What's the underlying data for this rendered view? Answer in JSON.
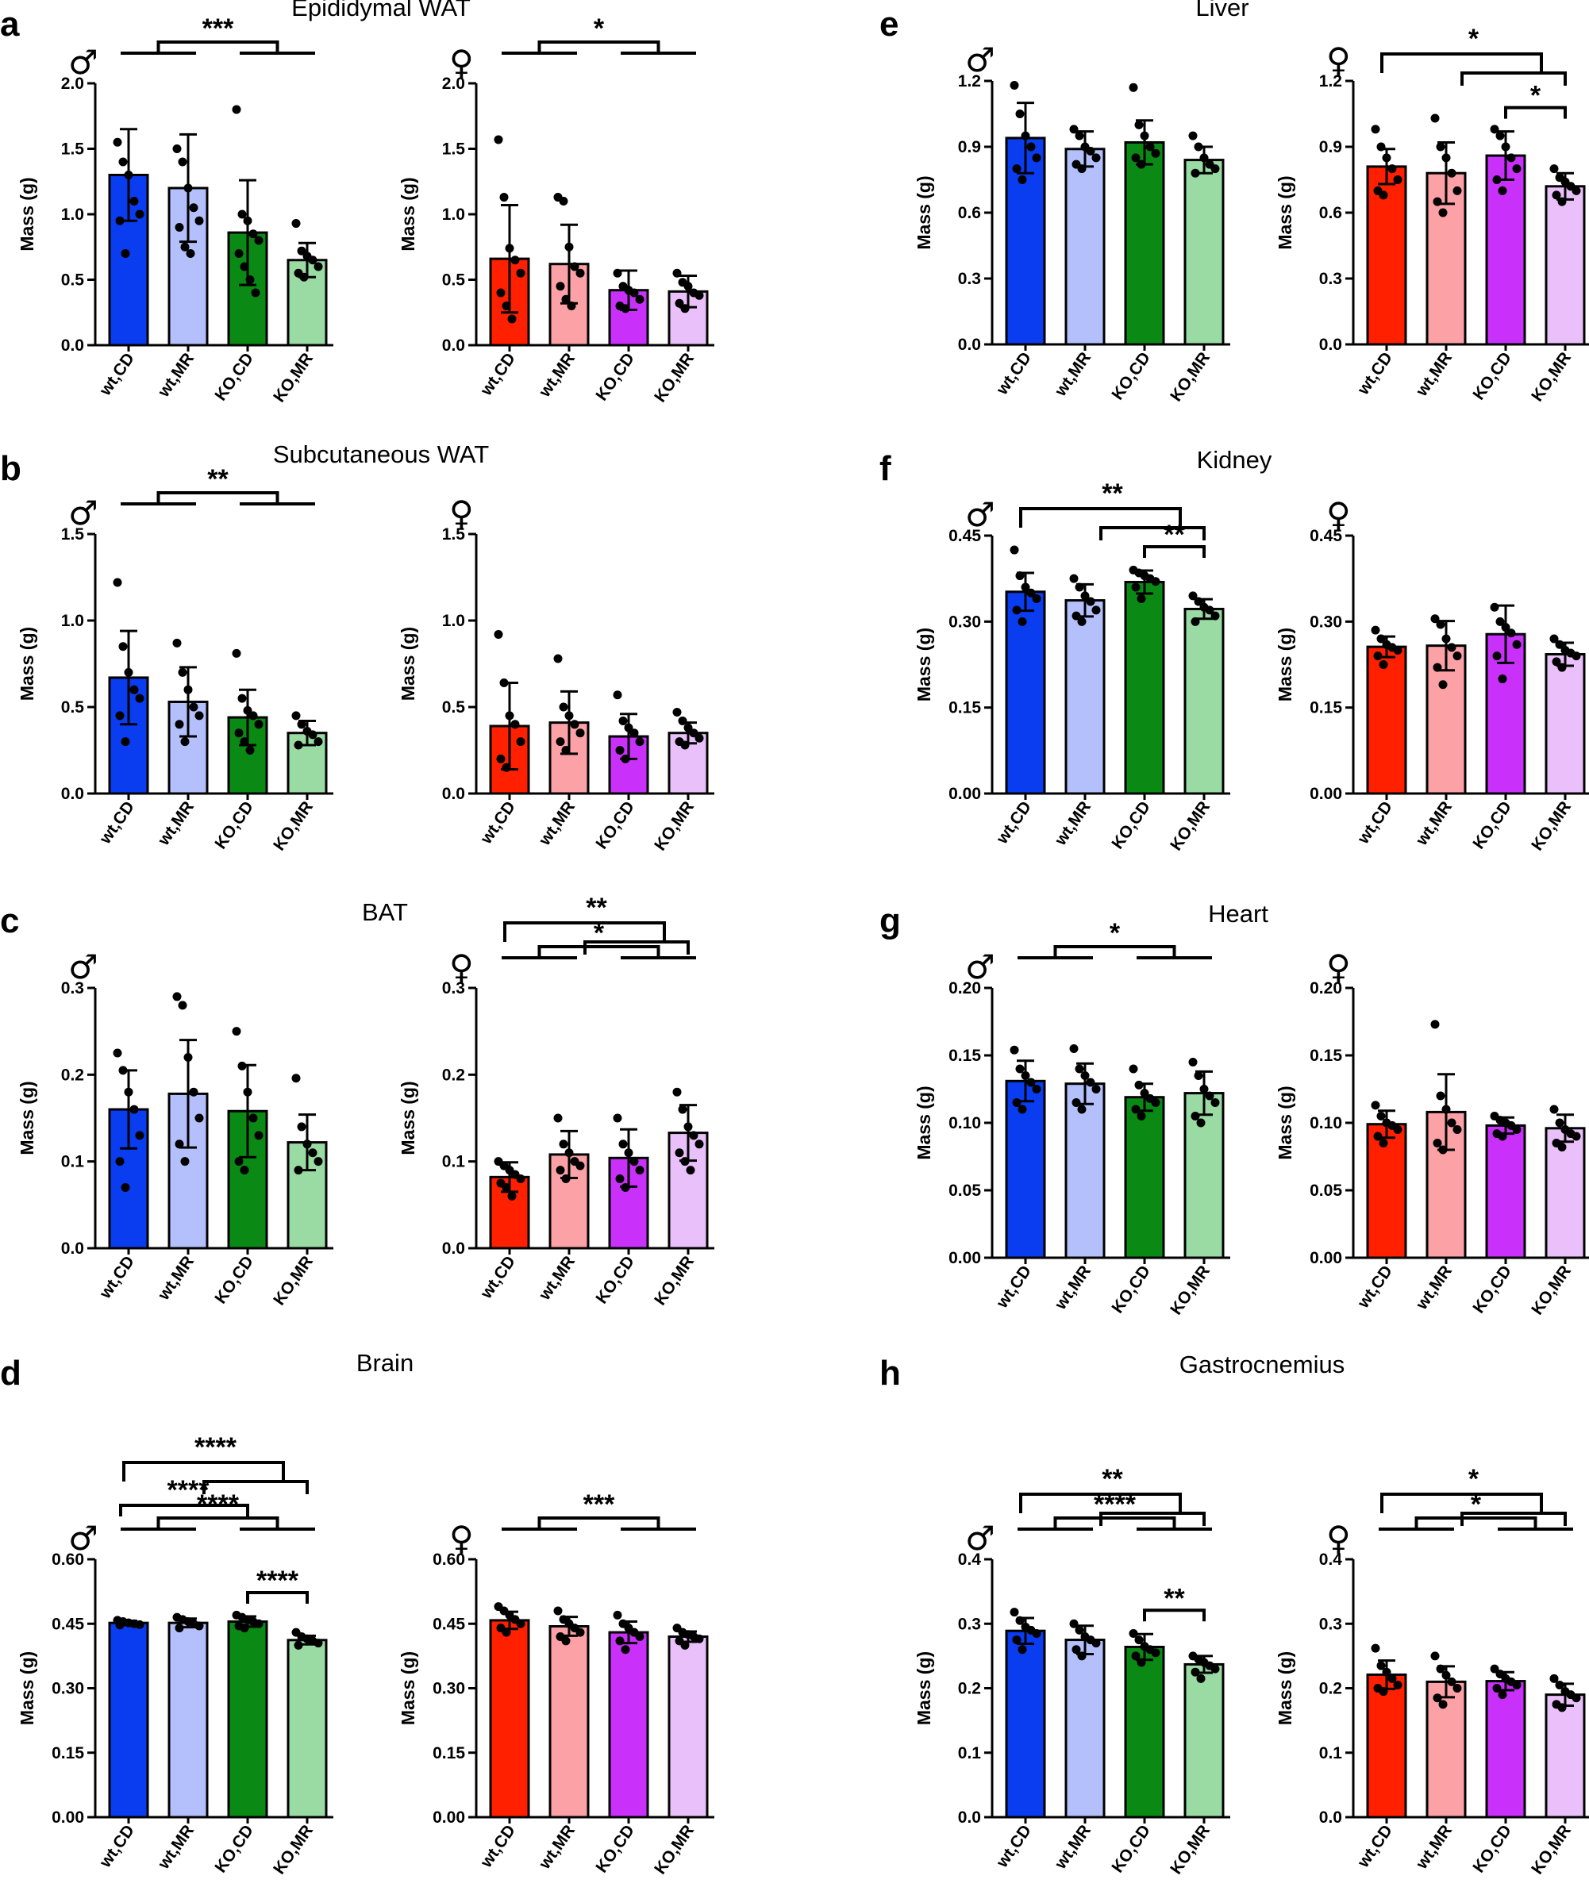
{
  "categories": [
    "wt,CD",
    "wt,MR",
    "KO,CD",
    "KO,MR"
  ],
  "y_axis_label": "Mass (g)",
  "symbols": {
    "male": "♂",
    "female": "♀"
  },
  "colors": {
    "male": [
      "#0a3cf0",
      "#b3c0fb",
      "#0a8a14",
      "#99dba3"
    ],
    "female": [
      "#ff2000",
      "#fca1a6",
      "#c931fb",
      "#eac0fb"
    ]
  },
  "panels": [
    {
      "letter": "a",
      "title": "Epididymal WAT"
    },
    {
      "letter": "b",
      "title": "Subcutaneous WAT"
    },
    {
      "letter": "c",
      "title": "BAT"
    },
    {
      "letter": "d",
      "title": "Brain"
    },
    {
      "letter": "e",
      "title": "Liver"
    },
    {
      "letter": "f",
      "title": "Kidney"
    },
    {
      "letter": "g",
      "title": "Heart"
    },
    {
      "letter": "h",
      "title": "Gastrocnemius"
    }
  ],
  "chart_data": [
    {
      "panel": "a",
      "sex": "male",
      "type": "bar",
      "ylim": [
        0,
        2.0
      ],
      "ticks": [
        "0.0",
        "0.5",
        "1.0",
        "1.5",
        "2.0"
      ],
      "values": [
        1.3,
        1.2,
        0.86,
        0.65
      ],
      "sd": [
        0.35,
        0.41,
        0.4,
        0.13
      ],
      "points": [
        [
          1.55,
          1.4,
          1.3,
          1.1,
          1.0,
          0.95,
          0.7
        ],
        [
          1.5,
          1.4,
          1.2,
          1.05,
          0.95,
          0.9,
          0.75,
          0.7
        ],
        [
          1.8,
          1.0,
          0.95,
          0.85,
          0.8,
          0.7,
          0.6,
          0.5,
          0.4
        ],
        [
          0.93,
          0.72,
          0.68,
          0.65,
          0.6,
          0.55,
          0.52
        ]
      ],
      "brackets": [
        {
          "type": "group",
          "a": [
            0,
            1
          ],
          "b": [
            2,
            3
          ],
          "label": "***"
        }
      ]
    },
    {
      "panel": "a",
      "sex": "female",
      "type": "bar",
      "ylim": [
        0,
        2.0
      ],
      "ticks": [
        "0.0",
        "0.5",
        "1.0",
        "1.5",
        "2.0"
      ],
      "values": [
        0.66,
        0.62,
        0.42,
        0.41
      ],
      "sd": [
        0.41,
        0.3,
        0.15,
        0.12
      ],
      "points": [
        [
          1.57,
          1.13,
          0.74,
          0.65,
          0.55,
          0.4,
          0.3,
          0.2
        ],
        [
          1.13,
          1.1,
          0.75,
          0.6,
          0.55,
          0.45,
          0.35,
          0.3
        ],
        [
          0.55,
          0.45,
          0.42,
          0.4,
          0.35,
          0.3,
          0.28
        ],
        [
          0.55,
          0.48,
          0.45,
          0.4,
          0.38,
          0.32,
          0.28
        ]
      ],
      "brackets": [
        {
          "type": "group",
          "a": [
            0,
            1
          ],
          "b": [
            2,
            3
          ],
          "label": "*"
        }
      ]
    },
    {
      "panel": "b",
      "sex": "male",
      "type": "bar",
      "ylim": [
        0,
        1.5
      ],
      "ticks": [
        "0.0",
        "0.5",
        "1.0",
        "1.5"
      ],
      "values": [
        0.67,
        0.53,
        0.44,
        0.35
      ],
      "sd": [
        0.27,
        0.2,
        0.16,
        0.07
      ],
      "points": [
        [
          1.22,
          0.85,
          0.7,
          0.6,
          0.55,
          0.45,
          0.3
        ],
        [
          0.87,
          0.7,
          0.6,
          0.5,
          0.45,
          0.4,
          0.3
        ],
        [
          0.81,
          0.55,
          0.48,
          0.45,
          0.4,
          0.35,
          0.3,
          0.25
        ],
        [
          0.45,
          0.4,
          0.36,
          0.34,
          0.3,
          0.28
        ]
      ],
      "brackets": [
        {
          "type": "group",
          "a": [
            0,
            1
          ],
          "b": [
            2,
            3
          ],
          "label": "**"
        }
      ]
    },
    {
      "panel": "b",
      "sex": "female",
      "type": "bar",
      "ylim": [
        0,
        1.5
      ],
      "ticks": [
        "0.0",
        "0.5",
        "1.0",
        "1.5"
      ],
      "values": [
        0.39,
        0.41,
        0.33,
        0.35
      ],
      "sd": [
        0.25,
        0.18,
        0.13,
        0.06
      ],
      "points": [
        [
          0.92,
          0.64,
          0.45,
          0.4,
          0.3,
          0.2,
          0.15
        ],
        [
          0.78,
          0.5,
          0.45,
          0.4,
          0.35,
          0.3,
          0.25
        ],
        [
          0.57,
          0.42,
          0.38,
          0.35,
          0.3,
          0.25,
          0.2
        ],
        [
          0.47,
          0.42,
          0.38,
          0.35,
          0.32,
          0.3,
          0.28
        ]
      ],
      "brackets": []
    },
    {
      "panel": "c",
      "sex": "male",
      "type": "bar",
      "ylim": [
        0,
        0.3
      ],
      "ticks": [
        "0.0",
        "0.1",
        "0.2",
        "0.3"
      ],
      "values": [
        0.16,
        0.178,
        0.158,
        0.122
      ],
      "sd": [
        0.045,
        0.062,
        0.053,
        0.032
      ],
      "points": [
        [
          0.225,
          0.205,
          0.18,
          0.16,
          0.13,
          0.1,
          0.07
        ],
        [
          0.29,
          0.28,
          0.22,
          0.18,
          0.15,
          0.12,
          0.1
        ],
        [
          0.25,
          0.21,
          0.18,
          0.15,
          0.13,
          0.1,
          0.09
        ],
        [
          0.196,
          0.14,
          0.12,
          0.11,
          0.1,
          0.09
        ]
      ],
      "brackets": []
    },
    {
      "panel": "c",
      "sex": "female",
      "type": "bar",
      "ylim": [
        0,
        0.3
      ],
      "ticks": [
        "0.0",
        "0.1",
        "0.2",
        "0.3"
      ],
      "values": [
        0.082,
        0.108,
        0.104,
        0.133
      ],
      "sd": [
        0.017,
        0.027,
        0.033,
        0.032
      ],
      "points": [
        [
          0.1,
          0.095,
          0.09,
          0.085,
          0.08,
          0.075,
          0.07,
          0.06
        ],
        [
          0.15,
          0.12,
          0.11,
          0.1,
          0.095,
          0.09,
          0.08
        ],
        [
          0.15,
          0.12,
          0.11,
          0.1,
          0.09,
          0.08,
          0.07
        ],
        [
          0.18,
          0.16,
          0.14,
          0.13,
          0.12,
          0.11,
          0.1,
          0.09
        ]
      ],
      "brackets": [
        {
          "type": "nested",
          "a": [
            0,
            1
          ],
          "b": [
            2,
            3
          ],
          "label": "**"
        },
        {
          "type": "group",
          "a": [
            0,
            1
          ],
          "b": [
            2,
            3
          ],
          "label": "*"
        }
      ]
    },
    {
      "panel": "d",
      "sex": "male",
      "type": "bar",
      "ylim": [
        0,
        0.6
      ],
      "ticks": [
        "0.00",
        "0.15",
        "0.30",
        "0.45",
        "0.60"
      ],
      "values": [
        0.452,
        0.452,
        0.455,
        0.412
      ],
      "sd": [
        0.005,
        0.01,
        0.012,
        0.01
      ],
      "points": [
        [
          0.458,
          0.455,
          0.452,
          0.45,
          0.448,
          0.447
        ],
        [
          0.465,
          0.46,
          0.455,
          0.45,
          0.445,
          0.44
        ],
        [
          0.47,
          0.465,
          0.46,
          0.455,
          0.45,
          0.445,
          0.44
        ],
        [
          0.43,
          0.42,
          0.415,
          0.41,
          0.405,
          0.4
        ]
      ],
      "brackets": [
        {
          "type": "group",
          "a": [
            0,
            1
          ],
          "b": [
            2,
            3
          ],
          "label": "****"
        },
        {
          "type": "nested",
          "a": [
            0,
            1
          ],
          "b": [
            2,
            3
          ],
          "label": "****"
        },
        {
          "type": "cross",
          "a": 0,
          "b": 2,
          "label": "****"
        },
        {
          "type": "pair",
          "a": 2,
          "b": 3,
          "label": "****"
        }
      ]
    },
    {
      "panel": "d",
      "sex": "female",
      "type": "bar",
      "ylim": [
        0,
        0.6
      ],
      "ticks": [
        "0.00",
        "0.15",
        "0.30",
        "0.45",
        "0.60"
      ],
      "values": [
        0.458,
        0.444,
        0.43,
        0.42
      ],
      "sd": [
        0.02,
        0.022,
        0.025,
        0.012
      ],
      "points": [
        [
          0.49,
          0.48,
          0.47,
          0.46,
          0.45,
          0.44,
          0.43
        ],
        [
          0.48,
          0.46,
          0.45,
          0.44,
          0.43,
          0.42,
          0.41
        ],
        [
          0.47,
          0.45,
          0.44,
          0.43,
          0.42,
          0.41,
          0.39
        ],
        [
          0.44,
          0.43,
          0.425,
          0.42,
          0.415,
          0.41,
          0.4
        ]
      ],
      "brackets": [
        {
          "type": "group",
          "a": [
            0,
            1
          ],
          "b": [
            2,
            3
          ],
          "label": "***"
        }
      ]
    },
    {
      "panel": "e",
      "sex": "male",
      "type": "bar",
      "ylim": [
        0,
        1.2
      ],
      "ticks": [
        "0.0",
        "0.3",
        "0.6",
        "0.9",
        "1.2"
      ],
      "values": [
        0.94,
        0.89,
        0.92,
        0.84
      ],
      "sd": [
        0.16,
        0.08,
        0.1,
        0.06
      ],
      "points": [
        [
          1.18,
          1.05,
          0.95,
          0.9,
          0.85,
          0.8,
          0.75
        ],
        [
          0.98,
          0.95,
          0.9,
          0.88,
          0.85,
          0.82,
          0.8
        ],
        [
          1.17,
          1.0,
          0.95,
          0.9,
          0.87,
          0.85,
          0.82
        ],
        [
          0.95,
          0.9,
          0.85,
          0.82,
          0.8,
          0.78
        ]
      ],
      "brackets": []
    },
    {
      "panel": "e",
      "sex": "female",
      "type": "bar",
      "ylim": [
        0,
        1.2
      ],
      "ticks": [
        "0.0",
        "0.3",
        "0.6",
        "0.9",
        "1.2"
      ],
      "values": [
        0.81,
        0.78,
        0.86,
        0.72
      ],
      "sd": [
        0.08,
        0.14,
        0.11,
        0.06
      ],
      "points": [
        [
          0.98,
          0.9,
          0.85,
          0.8,
          0.75,
          0.7,
          0.68
        ],
        [
          1.03,
          0.9,
          0.85,
          0.78,
          0.7,
          0.65,
          0.6
        ],
        [
          0.98,
          0.95,
          0.9,
          0.85,
          0.8,
          0.75,
          0.7
        ],
        [
          0.8,
          0.76,
          0.74,
          0.72,
          0.7,
          0.68,
          0.65
        ]
      ],
      "brackets": [
        {
          "type": "nested",
          "a": [
            0,
            1
          ],
          "b": [
            2,
            3
          ],
          "label": "*"
        },
        {
          "type": "pair",
          "a": 2,
          "b": 3,
          "label": "*"
        }
      ]
    },
    {
      "panel": "f",
      "sex": "male",
      "type": "bar",
      "ylim": [
        0,
        0.45
      ],
      "ticks": [
        "0.00",
        "0.15",
        "0.30",
        "0.45"
      ],
      "values": [
        0.352,
        0.337,
        0.369,
        0.322
      ],
      "sd": [
        0.033,
        0.028,
        0.02,
        0.017
      ],
      "points": [
        [
          0.425,
          0.38,
          0.36,
          0.35,
          0.34,
          0.32,
          0.3
        ],
        [
          0.375,
          0.36,
          0.345,
          0.335,
          0.32,
          0.31,
          0.3
        ],
        [
          0.39,
          0.385,
          0.38,
          0.375,
          0.37,
          0.36,
          0.34
        ],
        [
          0.345,
          0.335,
          0.325,
          0.32,
          0.31,
          0.3
        ]
      ],
      "brackets": [
        {
          "type": "nested",
          "a": [
            0,
            1
          ],
          "b": [
            2,
            3
          ],
          "label": "**"
        },
        {
          "type": "pair",
          "a": 2,
          "b": 3,
          "label": "**"
        }
      ]
    },
    {
      "panel": "f",
      "sex": "female",
      "type": "bar",
      "ylim": [
        0,
        0.45
      ],
      "ticks": [
        "0.00",
        "0.15",
        "0.30",
        "0.45"
      ],
      "values": [
        0.256,
        0.258,
        0.278,
        0.243
      ],
      "sd": [
        0.018,
        0.043,
        0.05,
        0.02
      ],
      "points": [
        [
          0.285,
          0.27,
          0.26,
          0.255,
          0.25,
          0.24,
          0.225
        ],
        [
          0.305,
          0.295,
          0.27,
          0.255,
          0.24,
          0.22,
          0.19
        ],
        [
          0.325,
          0.3,
          0.29,
          0.28,
          0.26,
          0.24,
          0.2
        ],
        [
          0.27,
          0.26,
          0.25,
          0.245,
          0.24,
          0.23,
          0.22
        ]
      ],
      "brackets": []
    },
    {
      "panel": "g",
      "sex": "male",
      "type": "bar",
      "ylim": [
        0,
        0.2
      ],
      "ticks": [
        "0.00",
        "0.05",
        "0.10",
        "0.15",
        "0.20"
      ],
      "values": [
        0.131,
        0.129,
        0.119,
        0.122
      ],
      "sd": [
        0.015,
        0.015,
        0.01,
        0.016
      ],
      "points": [
        [
          0.154,
          0.14,
          0.135,
          0.13,
          0.125,
          0.115,
          0.11
        ],
        [
          0.155,
          0.14,
          0.135,
          0.13,
          0.125,
          0.115,
          0.11
        ],
        [
          0.14,
          0.128,
          0.122,
          0.118,
          0.115,
          0.11,
          0.105
        ],
        [
          0.145,
          0.135,
          0.125,
          0.12,
          0.115,
          0.105,
          0.1
        ]
      ],
      "brackets": [
        {
          "type": "group",
          "a": [
            0,
            1
          ],
          "b": [
            2,
            3
          ],
          "label": "*"
        }
      ]
    },
    {
      "panel": "g",
      "sex": "female",
      "type": "bar",
      "ylim": [
        0,
        0.2
      ],
      "ticks": [
        "0.00",
        "0.05",
        "0.10",
        "0.15",
        "0.20"
      ],
      "values": [
        0.099,
        0.108,
        0.098,
        0.096
      ],
      "sd": [
        0.01,
        0.028,
        0.006,
        0.01
      ],
      "points": [
        [
          0.113,
          0.105,
          0.1,
          0.098,
          0.095,
          0.09,
          0.085
        ],
        [
          0.173,
          0.12,
          0.11,
          0.1,
          0.095,
          0.085,
          0.08
        ],
        [
          0.105,
          0.102,
          0.1,
          0.098,
          0.095,
          0.092,
          0.09
        ],
        [
          0.11,
          0.1,
          0.095,
          0.092,
          0.09,
          0.085,
          0.082
        ]
      ],
      "brackets": []
    },
    {
      "panel": "h",
      "sex": "male",
      "type": "bar",
      "ylim": [
        0,
        0.4
      ],
      "ticks": [
        "0.0",
        "0.1",
        "0.2",
        "0.3",
        "0.4"
      ],
      "values": [
        0.289,
        0.275,
        0.264,
        0.237
      ],
      "sd": [
        0.02,
        0.022,
        0.02,
        0.013
      ],
      "points": [
        [
          0.318,
          0.305,
          0.295,
          0.29,
          0.285,
          0.275,
          0.26
        ],
        [
          0.3,
          0.29,
          0.28,
          0.275,
          0.27,
          0.26,
          0.25
        ],
        [
          0.285,
          0.275,
          0.265,
          0.26,
          0.255,
          0.25,
          0.24
        ],
        [
          0.25,
          0.245,
          0.24,
          0.235,
          0.23,
          0.225,
          0.215
        ]
      ],
      "brackets": [
        {
          "type": "nested",
          "a": [
            0,
            1
          ],
          "b": [
            2,
            3
          ],
          "label": "**"
        },
        {
          "type": "group",
          "a": [
            0,
            1
          ],
          "b": [
            2,
            3
          ],
          "label": "****"
        },
        {
          "type": "pair",
          "a": 2,
          "b": 3,
          "label": "**"
        }
      ]
    },
    {
      "panel": "h",
      "sex": "female",
      "type": "bar",
      "ylim": [
        0,
        0.4
      ],
      "ticks": [
        "0.0",
        "0.1",
        "0.2",
        "0.3",
        "0.4"
      ],
      "values": [
        0.221,
        0.21,
        0.211,
        0.19
      ],
      "sd": [
        0.022,
        0.024,
        0.014,
        0.017
      ],
      "points": [
        [
          0.262,
          0.235,
          0.225,
          0.215,
          0.205,
          0.2,
          0.195
        ],
        [
          0.25,
          0.23,
          0.22,
          0.21,
          0.2,
          0.185,
          0.175
        ],
        [
          0.23,
          0.222,
          0.215,
          0.21,
          0.205,
          0.2,
          0.19
        ],
        [
          0.215,
          0.205,
          0.195,
          0.19,
          0.185,
          0.175,
          0.17
        ]
      ],
      "brackets": [
        {
          "type": "nested",
          "a": [
            0,
            1
          ],
          "b": [
            2,
            3
          ],
          "label": "*"
        },
        {
          "type": "group",
          "a": [
            0,
            1
          ],
          "b": [
            2,
            3
          ],
          "label": "*"
        }
      ]
    }
  ]
}
